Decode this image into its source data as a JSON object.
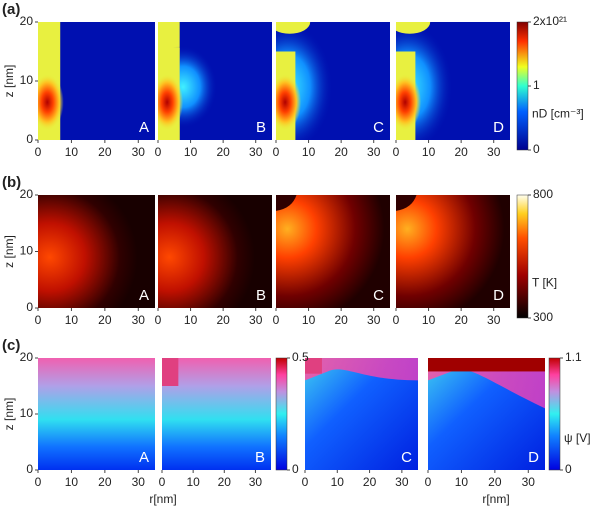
{
  "figure": {
    "rows": [
      {
        "label": "(a)",
        "y_label": "z [nm]",
        "xlim": [
          0,
          35
        ],
        "xticks": [
          0,
          10,
          20,
          30
        ],
        "ylim": [
          0,
          20
        ],
        "yticks": [
          0,
          10,
          20
        ],
        "panels": [
          "A",
          "B",
          "C",
          "D"
        ],
        "colorbars": [
          {
            "label": "nD [cm⁻³]",
            "lim": [
              0,
              2
            ],
            "ticks": [
              {
                "value": 2,
                "label": "2x10²¹"
              },
              1,
              0
            ]
          }
        ]
      },
      {
        "label": "(b)",
        "y_label": "z [nm]",
        "xlim": [
          0,
          35
        ],
        "xticks": [
          0,
          10,
          20,
          30
        ],
        "ylim": [
          0,
          20
        ],
        "yticks": [
          0,
          10,
          20
        ],
        "panels": [
          "A",
          "B",
          "C",
          "D"
        ],
        "colorbars": [
          {
            "label": "T [K]",
            "lim": [
              300,
              800
            ],
            "ticks": [
              800,
              300
            ]
          }
        ]
      },
      {
        "label": "(c)",
        "y_label": "z [nm]",
        "x_label": "r[nm]",
        "xlim": [
          0,
          35
        ],
        "xticks": [
          0,
          10,
          20,
          30
        ],
        "ylim": [
          0,
          20
        ],
        "yticks": [
          0,
          10,
          20
        ],
        "panels": [
          "A",
          "B",
          "C",
          "D"
        ],
        "colorbars": [
          {
            "lim": [
              0,
              0.5
            ],
            "ticks": [
              0.5,
              0
            ]
          },
          {
            "label": "ψ [V]",
            "lim": [
              0,
              1.1
            ],
            "ticks": [
              1.1,
              0
            ]
          }
        ]
      }
    ]
  }
}
